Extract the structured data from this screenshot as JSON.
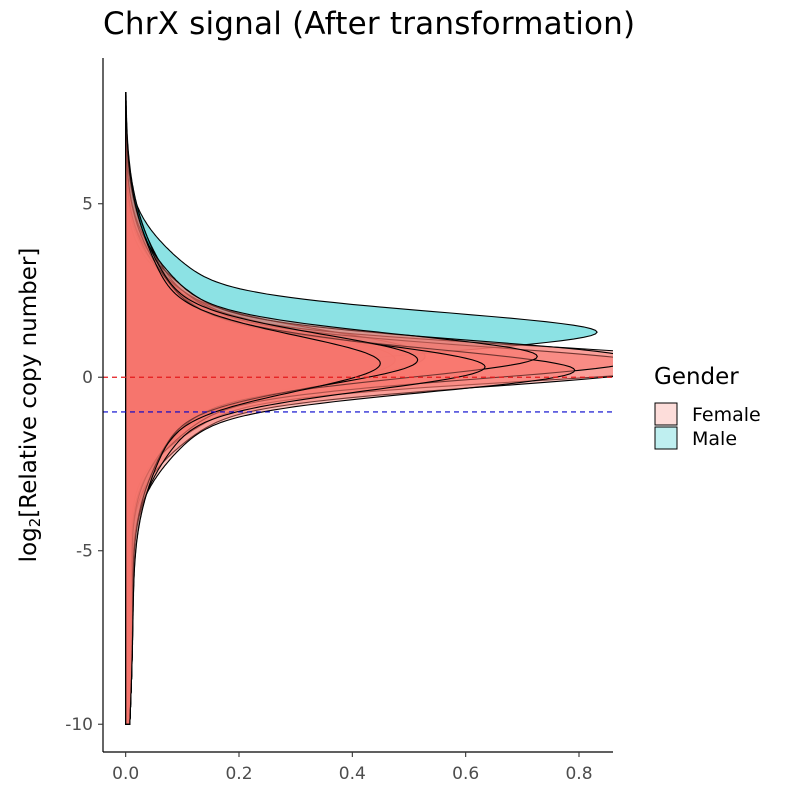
{
  "chart_data": {
    "type": "area",
    "title": "ChrX signal (After transformation)",
    "xlabel": "",
    "ylabel_prefix": "log",
    "ylabel_sub": "2",
    "ylabel_suffix": "[Relative copy number]",
    "xlim": [
      -0.04,
      0.86
    ],
    "ylim": [
      -10.8,
      9.2
    ],
    "x_ticks": [
      0.0,
      0.2,
      0.4,
      0.6,
      0.8
    ],
    "x_tick_labels": [
      "0.0",
      "0.2",
      "0.4",
      "0.6",
      "0.8"
    ],
    "y_ticks": [
      5,
      0,
      -5,
      -10
    ],
    "y_tick_labels": [
      "5",
      "0",
      "-5",
      "-10"
    ],
    "reference_lines": [
      {
        "y": 0,
        "color": "#e41a1c",
        "style": "dashed"
      },
      {
        "y": -1,
        "color": "#0000cc",
        "style": "dashed"
      }
    ],
    "legend": {
      "title": "Gender",
      "position": "right",
      "entries": [
        {
          "label": "Female",
          "color": "#F8766D"
        },
        {
          "label": "Male",
          "color": "#00BFC4"
        }
      ]
    },
    "series": [
      {
        "group": "Male",
        "peak_density": 0.63,
        "peak_y": 1.3,
        "spread": 1.0
      },
      {
        "group": "Male",
        "peak_density": 0.4,
        "peak_y": 0.6,
        "spread": 1.3
      },
      {
        "group": "Male",
        "peak_density": 0.36,
        "peak_y": 0.5,
        "spread": 1.4
      },
      {
        "group": "Female",
        "peak_density": 0.8,
        "peak_y": 0.4,
        "spread": 0.9
      },
      {
        "group": "Female",
        "peak_density": 0.72,
        "peak_y": 0.3,
        "spread": 1.0
      },
      {
        "group": "Female",
        "peak_density": 0.68,
        "peak_y": 0.5,
        "spread": 1.0
      },
      {
        "group": "Female",
        "peak_density": 0.6,
        "peak_y": 0.2,
        "spread": 1.1
      },
      {
        "group": "Female",
        "peak_density": 0.55,
        "peak_y": 0.6,
        "spread": 1.1
      },
      {
        "group": "Female",
        "peak_density": 0.48,
        "peak_y": 0.3,
        "spread": 1.2
      },
      {
        "group": "Female",
        "peak_density": 0.39,
        "peak_y": 0.5,
        "spread": 1.3
      },
      {
        "group": "Female",
        "peak_density": 0.34,
        "peak_y": 0.4,
        "spread": 1.4
      }
    ]
  }
}
